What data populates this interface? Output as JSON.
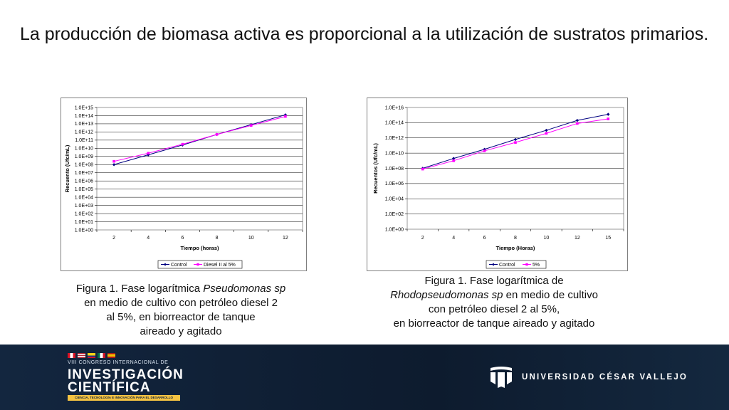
{
  "slide": {
    "title": "La producción de biomasa activa es proporcional a la utilización de sustratos primarios."
  },
  "chart_data": [
    {
      "type": "line",
      "ylabel": "Recuento (Ufc/mL)",
      "xlabel": "Tiempo (horas)",
      "y_scale": "log10",
      "ylim_exponent": [
        0,
        15
      ],
      "y_ticks": [
        "1.0E+00",
        "1.0E+01",
        "1.0E+02",
        "1.0E+03",
        "1.0E+04",
        "1.0E+05",
        "1.0E+06",
        "1.0E+07",
        "1.0E+08",
        "1.0E+09",
        "1.0E+10",
        "1.0E+11",
        "1.0E+12",
        "1.0E+13",
        "1.0E+14",
        "1.0E+15"
      ],
      "categories": [
        "2",
        "4",
        "6",
        "8",
        "10",
        "12"
      ],
      "series": [
        {
          "name": "Control",
          "color": "#000080",
          "marker": "diamond",
          "log10_values": [
            8.0,
            9.2,
            10.4,
            11.7,
            12.9,
            14.1
          ]
        },
        {
          "name": "Diesel II al 5%",
          "color": "#ff00ff",
          "marker": "square",
          "log10_values": [
            8.4,
            9.4,
            10.5,
            11.7,
            12.8,
            13.9
          ]
        }
      ],
      "legend": "bottom",
      "grid": "horizontal"
    },
    {
      "type": "line",
      "ylabel": "Recuentos (Ufc/mL)",
      "xlabel": "Tiempo (Horas)",
      "y_scale": "log10",
      "ylim_exponent": [
        0,
        16
      ],
      "y_ticks": [
        "1.0E+00",
        "1.0E+02",
        "1.0E+04",
        "1.0E+06",
        "1.0E+08",
        "1.0E+10",
        "1.0E+12",
        "1.0E+14",
        "1.0E+16"
      ],
      "categories": [
        "2",
        "4",
        "6",
        "8",
        "10",
        "12",
        "15"
      ],
      "series": [
        {
          "name": "Control",
          "color": "#000080",
          "marker": "diamond",
          "log10_values": [
            8.0,
            9.3,
            10.5,
            11.8,
            13.0,
            14.3,
            15.1
          ]
        },
        {
          "name": "5%",
          "color": "#ff00ff",
          "marker": "square",
          "log10_values": [
            7.9,
            9.0,
            10.3,
            11.4,
            12.6,
            13.9,
            14.5
          ]
        }
      ],
      "legend": "bottom",
      "grid": "horizontal"
    }
  ],
  "captions": {
    "fig1": {
      "prefix": "Figura 1. Fase logarítmica ",
      "species": "Pseudomonas sp",
      "line2": "en medio de cultivo con petróleo diesel 2",
      "line3": "al 5%, en biorreactor de tanque",
      "line4": "aireado y agitado"
    },
    "fig2": {
      "line1": "Figura 1. Fase logarítmica de",
      "species": "Rhodopseudomonas sp",
      "line2_rest": " en medio de cultivo",
      "line3": "con petróleo diesel 2 al 5%,",
      "line4": "en biorreactor de tanque aireado y agitado"
    }
  },
  "footer": {
    "congress_line": "VIII CONGRESO INTERNACIONAL DE",
    "congress_word1": "INVESTIGACIÓN",
    "congress_word2": "CIENTÍFICA",
    "congress_tagline": "CIENCIA, TECNOLOGÍA E INNOVACIÓN PARA EL DESARROLLO",
    "university": "UNIVERSIDAD CÉSAR VALLEJO",
    "background_color": "#0f1f33"
  }
}
